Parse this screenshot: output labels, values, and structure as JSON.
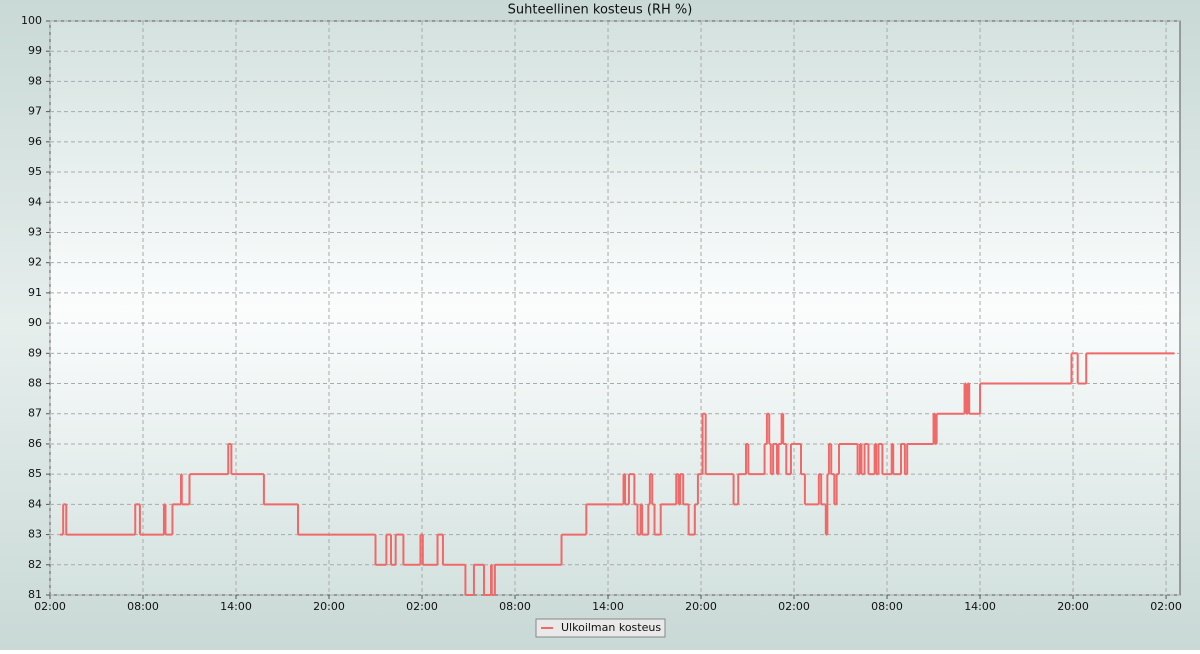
{
  "chart_data": {
    "type": "line",
    "title": "Suhteellinen kosteus (RH %)",
    "series": [
      {
        "name": "Ulkoilman kosteus",
        "color": "#f06868",
        "x": [
          0.65,
          0.85,
          1.05,
          5.5,
          5.8,
          7.35,
          7.45,
          7.9,
          8.45,
          8.5,
          9.0,
          11.5,
          11.7,
          13.8,
          16.0,
          21.0,
          21.7,
          22.0,
          22.3,
          22.8,
          23.9,
          24.05,
          25.0,
          25.35,
          26.8,
          27.35,
          28.0,
          28.45,
          28.5,
          28.7,
          33.0,
          34.6,
          37.0,
          37.1,
          37.35,
          37.7,
          37.9,
          38.1,
          38.2,
          38.6,
          38.7,
          38.85,
          39.0,
          39.4,
          40.4,
          40.55,
          40.65,
          40.85,
          41.2,
          41.6,
          41.8,
          42.1,
          42.3,
          44.1,
          44.4,
          44.9,
          45.05,
          46.1,
          46.25,
          46.4,
          46.5,
          46.65,
          46.9,
          47.0,
          47.2,
          47.3,
          47.5,
          47.8,
          48.45,
          48.7,
          49.6,
          49.75,
          50.05,
          50.15,
          50.25,
          50.4,
          50.6,
          50.75,
          50.9,
          52.1,
          52.25,
          52.35,
          52.55,
          52.8,
          53.2,
          53.3,
          53.45,
          53.7,
          54.3,
          54.4,
          54.9,
          55.15,
          55.3,
          57.0,
          57.1,
          57.2,
          59.0,
          59.1,
          59.2,
          59.3,
          60.0,
          65.9,
          66.3,
          66.85,
          72.5
        ],
        "values": [
          83,
          84,
          83,
          84,
          83,
          84,
          83,
          84,
          85,
          84,
          85,
          86,
          85,
          84,
          83,
          82,
          83,
          82,
          83,
          82,
          83,
          82,
          83,
          82,
          81,
          82,
          81,
          82,
          81,
          82,
          83,
          84,
          85,
          84,
          85,
          84,
          83,
          84,
          83,
          84,
          85,
          84,
          83,
          84,
          85,
          84,
          85,
          84,
          83,
          84,
          85,
          87,
          85,
          84,
          85,
          86,
          85,
          86,
          87,
          86,
          85,
          86,
          85,
          86,
          87,
          86,
          85,
          86,
          85,
          84,
          85,
          84,
          83,
          85,
          86,
          85,
          84,
          85,
          86,
          85,
          86,
          85,
          86,
          85,
          86,
          85,
          86,
          85,
          86,
          85,
          86,
          85,
          86,
          87,
          86,
          87,
          88,
          87,
          88,
          87,
          88,
          89,
          88,
          89,
          89
        ]
      }
    ],
    "xlim": [
      0,
      72.9
    ],
    "ylim": [
      81,
      100
    ],
    "xticks": [
      {
        "value": 0,
        "label": "02:00"
      },
      {
        "value": 6,
        "label": "08:00"
      },
      {
        "value": 12,
        "label": "14:00"
      },
      {
        "value": 18,
        "label": "20:00"
      },
      {
        "value": 24,
        "label": "02:00"
      },
      {
        "value": 30,
        "label": "08:00"
      },
      {
        "value": 36,
        "label": "14:00"
      },
      {
        "value": 42,
        "label": "20:00"
      },
      {
        "value": 48,
        "label": "02:00"
      },
      {
        "value": 54,
        "label": "08:00"
      },
      {
        "value": 60,
        "label": "14:00"
      },
      {
        "value": 66,
        "label": "20:00"
      },
      {
        "value": 72,
        "label": "02:00"
      }
    ],
    "yticks": [
      81,
      82,
      83,
      84,
      85,
      86,
      87,
      88,
      89,
      90,
      91,
      92,
      93,
      94,
      95,
      96,
      97,
      98,
      99,
      100
    ],
    "grid": true,
    "legend": "bottom"
  }
}
